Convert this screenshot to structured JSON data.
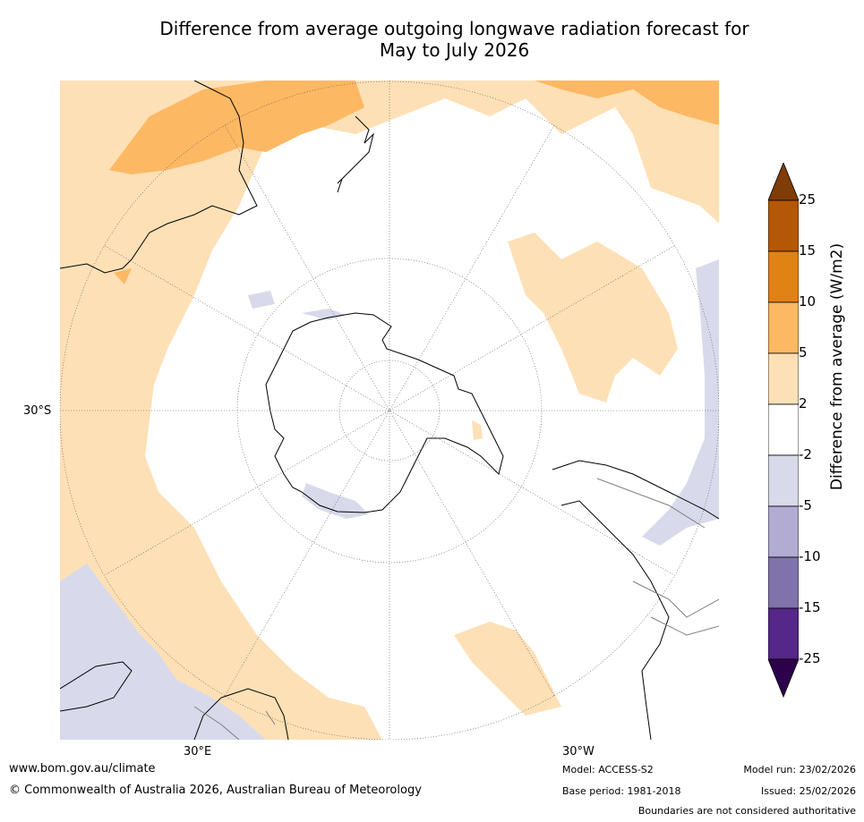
{
  "title": {
    "line1": "Difference from average outgoing longwave radiation forecast for",
    "line2": "May to July 2026"
  },
  "axis_labels": {
    "lat": "30°S",
    "lon_east": "30°E",
    "lon_west": "30°W"
  },
  "colorbar": {
    "title": "Difference from average (W/m2)",
    "ticks": [
      "25",
      "15",
      "10",
      "5",
      "2",
      "-2",
      "-5",
      "-10",
      "-15",
      "-25"
    ],
    "bands": [
      {
        "from": 25,
        "to": 9999,
        "color": "#7f3b08"
      },
      {
        "from": 15,
        "to": 25,
        "color": "#b35806"
      },
      {
        "from": 10,
        "to": 15,
        "color": "#e08214"
      },
      {
        "from": 5,
        "to": 10,
        "color": "#fdb863"
      },
      {
        "from": 2,
        "to": 5,
        "color": "#fee0b6"
      },
      {
        "from": -2,
        "to": 2,
        "color": "#ffffff"
      },
      {
        "from": -5,
        "to": -2,
        "color": "#d8daeb"
      },
      {
        "from": -10,
        "to": -5,
        "color": "#b2abd2"
      },
      {
        "from": -15,
        "to": -10,
        "color": "#8073ac"
      },
      {
        "from": -25,
        "to": -15,
        "color": "#542788"
      },
      {
        "from": -9999,
        "to": -25,
        "color": "#2d004b"
      }
    ]
  },
  "map": {
    "projection": "south-polar-stereographic",
    "colors": {
      "light_orange": "#fee0b6",
      "mid_orange": "#fdb863",
      "light_purple": "#d8daeb",
      "coast": "#000000",
      "border": "#808080",
      "grid": "#555555"
    }
  },
  "footer": {
    "url": "www.bom.gov.au/climate",
    "copyright": "© Commonwealth of Australia 2026, Australian Bureau of Meteorology",
    "model": "Model: ACCESS-S2",
    "base_period": "Base period: 1981-2018",
    "model_run": "Model run: 23/02/2026",
    "issued": "Issued: 25/02/2026",
    "disclaimer": "Boundaries are not considered authoritative"
  }
}
